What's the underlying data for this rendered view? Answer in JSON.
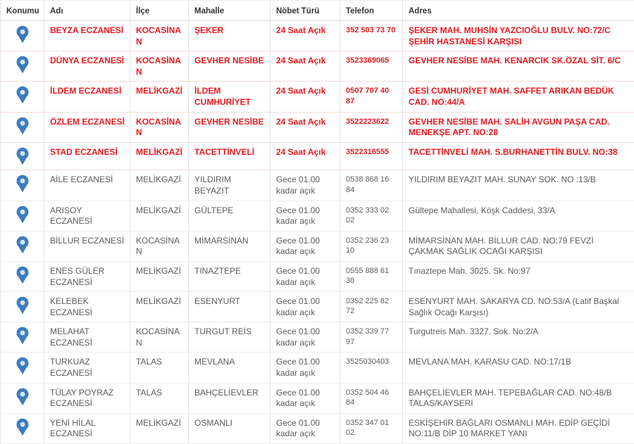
{
  "colors": {
    "duty_red": "#e8191f",
    "text_gray": "#5b5b5b",
    "header_text": "#333333",
    "pin_blue": "#3b7cc0",
    "pin_dot": "#d7e4ef",
    "border_gray": "#e4e4e4",
    "row_divider_red": "#f6d9d9"
  },
  "table": {
    "headers": [
      "Konumu",
      "Adı",
      "İlçe",
      "Mahalle",
      "Nöbet Türü",
      "Telefon",
      "Adres"
    ],
    "location_icon": "map-pin",
    "duty_types": {
      "all_day": "24 Saat Açık",
      "night": "Gece 01.00 kadar açık"
    },
    "rows": [
      {
        "name": "BEYZA ECZANESİ",
        "district": "KOCASİNAN",
        "neighborhood": "ŞEKER",
        "duty": "24 Saat Açık",
        "phone": "352 503 73 70",
        "address": "ŞEKER MAH. MUHSİN YAZCIOĞLU BULV. NO:72/C ŞEHİR HASTANESİ KARŞISI",
        "open24": true
      },
      {
        "name": "DÜNYA ECZANESİ",
        "district": "KOCASİNAN",
        "neighborhood": "GEVHER NESİBE",
        "duty": "24 Saat Açık",
        "phone": "3523369065",
        "address": "GEVHER NESİBE MAH. KENARCIK SK.ÖZAL SİT. 6/C",
        "open24": true
      },
      {
        "name": "İLDEM ECZANESİ",
        "district": "MELİKGAZİ",
        "neighborhood": "İLDEM CUMHURİYET",
        "duty": "24 Saat Açık",
        "phone": "0507 707 40 87",
        "address": "GESİ CUMHURİYET MAH. SAFFET ARIKAN BEDÜK CAD. NO:44/A",
        "open24": true
      },
      {
        "name": "ÖZLEM ECZANESİ",
        "district": "KOCASİNAN",
        "neighborhood": "GEVHER NESİBE",
        "duty": "24 Saat Açık",
        "phone": "3522223622",
        "address": "GEVHER NESİBE MAH. SALİH AVGUN PAŞA CAD. MENEKŞE APT. NO:28",
        "open24": true
      },
      {
        "name": "STAD ECZANESİ",
        "district": "MELİKGAZİ",
        "neighborhood": "TACETTİNVELİ",
        "duty": "24 Saat Açık",
        "phone": "3522316555",
        "address": "TACETTİNVELİ MAH. S.BURHANETTİN BULV. NO:38",
        "open24": true
      },
      {
        "name": "AİLE ECZANESİ",
        "district": "MELİKGAZİ",
        "neighborhood": "YILDIRIM BEYAZIT",
        "duty": "Gece 01.00 kadar açık",
        "phone": "0538 868 16 84",
        "address": "YILDIRIM BEYAZIT MAH. SUNAY SOK. NO :13/B",
        "open24": false
      },
      {
        "name": "ARISOY ECZANESİ",
        "district": "MELİKGAZİ",
        "neighborhood": "GÜLTEPE",
        "duty": "Gece 01.00 kadar açık",
        "phone": "0352 333 02 02",
        "address": "Gültepe Mahallesi, Köşk Caddesi, 33/A",
        "open24": false
      },
      {
        "name": "BİLLUR ECZANESİ",
        "district": "KOCASİNAN",
        "neighborhood": "MİMARSİNAN",
        "duty": "Gece 01.00 kadar açık",
        "phone": "0352 236 23 10",
        "address": "MİMARSİNAN MAH. BİLLUR CAD. NO:79 FEVZİ ÇAKMAK SAĞLIK OCAĞI KARŞISI",
        "open24": false
      },
      {
        "name": "ENES GÜLER ECZANESİ",
        "district": "MELİKGAZİ",
        "neighborhood": "TINAZTEPE",
        "duty": "Gece 01.00 kadar açık",
        "phone": "0555 888 61 38",
        "address": "Tınaztepe Mah. 3025. Sk. No:97",
        "open24": false
      },
      {
        "name": "KELEBEK ECZANESİ",
        "district": "MELİKGAZİ",
        "neighborhood": "ESENYURT",
        "duty": "Gece 01.00 kadar açık",
        "phone": "0352 225 82 72",
        "address": "ESENYURT MAH. SAKARYA CD. NO:53/A (Latif Başkal Sağlık Ocağı Karşısı)",
        "open24": false
      },
      {
        "name": "MELAHAT ECZANESİ",
        "district": "KOCASİNAN",
        "neighborhood": "TURGUT REİS",
        "duty": "Gece 01.00 kadar açık",
        "phone": "0352 339 77 97",
        "address": "Turgutreis Mah. 3327. Sok. No:2/A",
        "open24": false
      },
      {
        "name": "TURKUAZ ECZANESİ",
        "district": "TALAS",
        "neighborhood": "MEVLANA",
        "duty": "Gece 01.00 kadar açık",
        "phone": "3525030403",
        "address": "MEVLANA MAH. KARASU CAD. NO:17/1B",
        "open24": false
      },
      {
        "name": "TÜLAY POYRAZ ECZANESİ",
        "district": "TALAS",
        "neighborhood": "BAHÇELİEVLER",
        "duty": "Gece 01.00 kadar açık",
        "phone": "0352 504 46 84",
        "address": "BAHÇELİEVLER MAH. TEPEBAĞLAR CAD. NO:48/B TALAS/KAYSERİ",
        "open24": false
      },
      {
        "name": "YENİ HİLAL ECZANESİ",
        "district": "MELİKGAZİ",
        "neighborhood": "OSMANLI",
        "duty": "Gece 01.00 kadar açık",
        "phone": "0352 347 01 02",
        "address": "ESKİŞEHİR BAĞLARI OSMANLI MAH. EDİP GEÇİDİ NO:11/B DİP 10 MARKET YANI",
        "open24": false
      }
    ]
  }
}
